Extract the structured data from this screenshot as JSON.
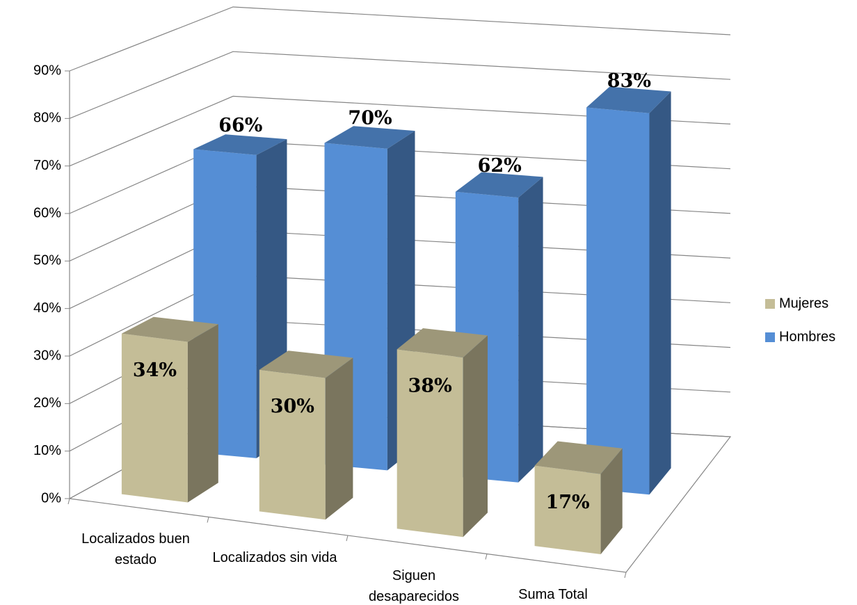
{
  "chart_data": {
    "type": "bar3d",
    "categories": [
      "Localizados buen estado",
      "Localizados sin vida",
      "Siguen desaparecidos",
      "Suma Total"
    ],
    "series": [
      {
        "name": "Mujeres",
        "color": "#c4bd97",
        "values": [
          34,
          30,
          38,
          17
        ],
        "value_labels": [
          "34%",
          "30%",
          "38%",
          "17%"
        ]
      },
      {
        "name": "Hombres",
        "color": "#558ed5",
        "values": [
          66,
          70,
          62,
          83
        ],
        "value_labels": [
          "66%",
          "70%",
          "62%",
          "83%"
        ]
      }
    ],
    "ylim": [
      0,
      90
    ],
    "yticks": [
      {
        "value": 0,
        "label": "0%"
      },
      {
        "value": 10,
        "label": "10%"
      },
      {
        "value": 20,
        "label": "20%"
      },
      {
        "value": 30,
        "label": "30%"
      },
      {
        "value": 40,
        "label": "40%"
      },
      {
        "value": 50,
        "label": "50%"
      },
      {
        "value": 60,
        "label": "60%"
      },
      {
        "value": 70,
        "label": "70%"
      },
      {
        "value": 80,
        "label": "80%"
      },
      {
        "value": 90,
        "label": "90%"
      }
    ],
    "grid": true,
    "legend": "right"
  }
}
